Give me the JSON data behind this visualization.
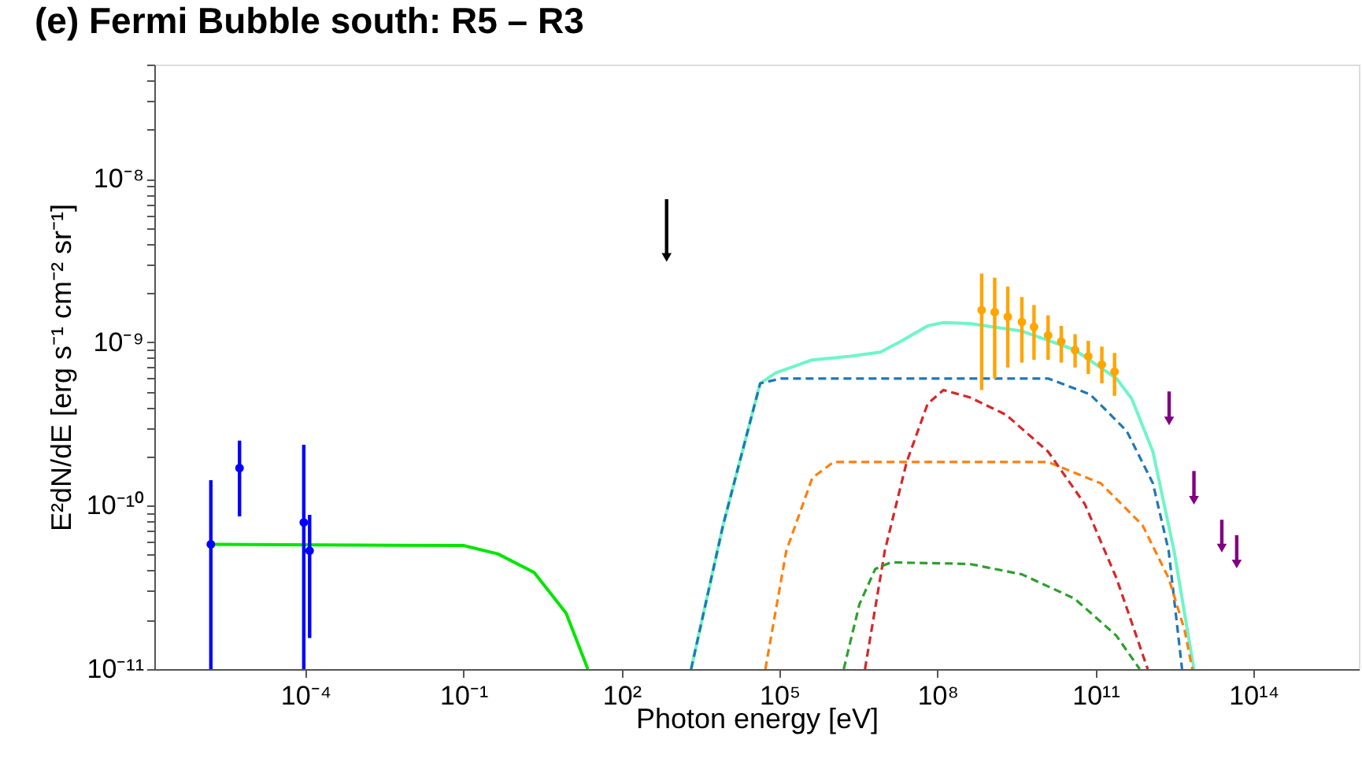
{
  "chart_data": {
    "type": "line",
    "title": "(e) Fermi Bubble south: R5 – R3",
    "xlabel": "Photon energy [eV]",
    "ylabel": "E²dN/dE [erg s⁻¹ cm⁻² sr⁻¹]",
    "log": "xy",
    "grid": false,
    "xlim": [
      1.35e-07,
      1e+16
    ],
    "ylim": [
      1e-11,
      5e-08
    ],
    "xticks": [
      {
        "value": 0.0001,
        "label": "10⁻⁴"
      },
      {
        "value": 0.1,
        "label": "10⁻¹"
      },
      {
        "value": 100,
        "label": "10²"
      },
      {
        "value": 100000.0,
        "label": "10⁵"
      },
      {
        "value": 100000000.0,
        "label": "10⁸"
      },
      {
        "value": 100000000000.0,
        "label": "10¹¹"
      },
      {
        "value": 100000000000000.0,
        "label": "10¹⁴"
      }
    ],
    "yticks": [
      {
        "value": 1e-11,
        "label": "10⁻¹¹"
      },
      {
        "value": 2e-11,
        "label": null
      },
      {
        "value": 3e-11,
        "label": null
      },
      {
        "value": 4e-11,
        "label": null
      },
      {
        "value": 5e-11,
        "label": null
      },
      {
        "value": 6e-11,
        "label": null
      },
      {
        "value": 7e-11,
        "label": null
      },
      {
        "value": 8e-11,
        "label": null
      },
      {
        "value": 9e-11,
        "label": null
      },
      {
        "value": 1e-10,
        "label": "10⁻¹⁰"
      },
      {
        "value": 2e-10,
        "label": null
      },
      {
        "value": 3e-10,
        "label": null
      },
      {
        "value": 4e-10,
        "label": null
      },
      {
        "value": 5e-10,
        "label": null
      },
      {
        "value": 6e-10,
        "label": null
      },
      {
        "value": 7e-10,
        "label": null
      },
      {
        "value": 8e-10,
        "label": null
      },
      {
        "value": 9e-10,
        "label": null
      },
      {
        "value": 1e-09,
        "label": "10⁻⁹"
      },
      {
        "value": 2e-09,
        "label": null
      },
      {
        "value": 3e-09,
        "label": null
      },
      {
        "value": 4e-09,
        "label": null
      },
      {
        "value": 5e-09,
        "label": null
      },
      {
        "value": 6e-09,
        "label": null
      },
      {
        "value": 7e-09,
        "label": null
      },
      {
        "value": 8e-09,
        "label": null
      },
      {
        "value": 9e-09,
        "label": null
      },
      {
        "value": 1e-08,
        "label": "10⁻⁸"
      },
      {
        "value": 2e-08,
        "label": null
      },
      {
        "value": 3e-08,
        "label": null
      },
      {
        "value": 4e-08,
        "label": null
      },
      {
        "value": 5e-08,
        "label": null
      }
    ],
    "series": [
      {
        "line_style": "solid",
        "color": "#00e600",
        "x": [
          1.6e-06,
          0.1,
          0.45,
          2.2,
          8.9,
          23
        ],
        "values": [
          5.8e-11,
          5.7e-11,
          5.07e-11,
          3.9e-11,
          2.2e-11,
          1e-11
        ]
      },
      {
        "line_style": "dashed",
        "color": "#1f77b4",
        "x": [
          2100.0,
          8500.0,
          43000.0,
          107000.0,
          12600000000.0,
          79000000000.0,
          390000000000.0,
          1230000000000.0,
          2450000000000.0,
          4400000000000.0
        ],
        "values": [
          1e-11,
          7.6e-11,
          5.6e-10,
          6e-10,
          6e-10,
          4.8e-10,
          2.87e-10,
          1.37e-10,
          5.3e-11,
          1e-11
        ]
      },
      {
        "line_style": "dashed",
        "color": "#ff7f0e",
        "x": [
          54000.0,
          135000.0,
          420000.0,
          1070000.0,
          12600000000.0,
          126000000000.0,
          780000000000.0,
          2450000000000.0,
          4900000000000.0,
          6900000000000.0
        ],
        "values": [
          1e-11,
          5.3e-11,
          1.48e-10,
          1.85e-10,
          1.85e-10,
          1.37e-10,
          7.6e-11,
          3.6e-11,
          1.74e-11,
          1e-11
        ]
      },
      {
        "line_style": "dashed",
        "color": "#d62728",
        "x": [
          4200000.0,
          10000000.0,
          26000000.0,
          65000000.0,
          130000000.0,
          410000000.0,
          2000000000.0,
          12600000000.0,
          63000000000.0,
          250000000000.0,
          980000000000.0
        ],
        "values": [
          1e-11,
          5.3e-11,
          1.85e-10,
          4.2e-10,
          5.1e-10,
          4.6e-10,
          3.6e-10,
          2.14e-10,
          1.02e-10,
          3.6e-11,
          1e-11
        ]
      },
      {
        "line_style": "dashed",
        "color": "#2ca02c",
        "x": [
          1660000.0,
          3300000.0,
          6600000.0,
          13000000.0,
          410000000.0,
          4000000000.0,
          40000000000.0,
          250000000000.0,
          690000000000.0
        ],
        "values": [
          1e-11,
          2.5e-11,
          4.1e-11,
          4.5e-11,
          4.4e-11,
          3.8e-11,
          2.7e-11,
          1.6e-11,
          1e-11
        ]
      },
      {
        "line_style": "solid",
        "color": "#6ff5c8",
        "x": [
          2100.0,
          8500.0,
          43000.0,
          85000.0,
          420000.0,
          2100000.0,
          8300000.0,
          20000000.0,
          65000000.0,
          130000000.0,
          410000000.0,
          4000000000.0,
          40000000000.0,
          250000000000.0,
          490000000000.0,
          1230000000000.0,
          3100000000000.0,
          7400000000000.0
        ],
        "values": [
          1e-11,
          7.6e-11,
          5.6e-10,
          6.5e-10,
          7.8e-10,
          8.2e-10,
          8.7e-10,
          1.01e-09,
          1.26e-09,
          1.32e-09,
          1.3e-09,
          1.17e-09,
          9e-10,
          6e-10,
          4.5e-10,
          2.14e-10,
          5.3e-11,
          1e-11
        ]
      },
      {
        "type": "scatter",
        "marker": "circle",
        "color": "#0000ff",
        "x": [
          1.6e-06,
          5.6e-06,
          9.3e-05,
          0.00012
        ],
        "values": [
          5.8e-11,
          1.7e-10,
          7.9e-11,
          5.3e-11
        ],
        "errors": [
          [
            1e-11,
            1.43e-10
          ],
          [
            8.6e-11,
            2.5e-10
          ],
          [
            1e-11,
            2.36e-10
          ],
          [
            1.55e-11,
            8.8e-11
          ]
        ]
      },
      {
        "type": "scatter",
        "marker": "triangle",
        "color": "#000000",
        "x": [
          720
        ],
        "values": [
          3.3e-09
        ],
        "errors": [
          [
            3.3e-09,
            7.5e-09
          ]
        ]
      },
      {
        "type": "scatter",
        "marker": "circle",
        "color": "#ffa500",
        "x": [
          690000000.0,
          1220000000.0,
          2160000000.0,
          4000000000.0,
          6800000000.0,
          12600000000.0,
          22400000000.0,
          41000000000.0,
          73000000000.0,
          132000000000.0,
          230000000000.0
        ],
        "values": [
          1.57e-09,
          1.53e-09,
          1.43e-09,
          1.33e-09,
          1.24e-09,
          1.1e-09,
          1.01e-09,
          8.95e-10,
          8.2e-10,
          7.3e-10,
          6.6e-10
        ],
        "errors": [
          [
            5.1e-10,
            2.63e-09
          ],
          [
            6e-10,
            2.48e-09
          ],
          [
            7e-10,
            2.19e-09
          ],
          [
            7.5e-10,
            1.89e-09
          ],
          [
            7.8e-10,
            1.69e-09
          ],
          [
            7.8e-10,
            1.46e-09
          ],
          [
            7.5e-10,
            1.26e-09
          ],
          [
            7e-10,
            1.12e-09
          ],
          [
            6.4e-10,
            1.02e-09
          ],
          [
            5.6e-10,
            9.4e-10
          ],
          [
            4.7e-10,
            8.6e-10
          ]
        ]
      },
      {
        "type": "scatter",
        "marker": "triangle",
        "color": "#800080",
        "x": [
          2500000000000.0,
          7400000000000.0,
          25000000000000.0,
          48000000000000.0
        ],
        "values": [
          3.3e-10,
          1.08e-10,
          5.5e-11,
          4.4e-11
        ],
        "errors": [
          [
            3.3e-10,
            5e-10
          ],
          [
            1.08e-10,
            1.63e-10
          ],
          [
            5.5e-11,
            8.2e-11
          ],
          [
            4.4e-11,
            6.6e-11
          ]
        ]
      }
    ]
  }
}
